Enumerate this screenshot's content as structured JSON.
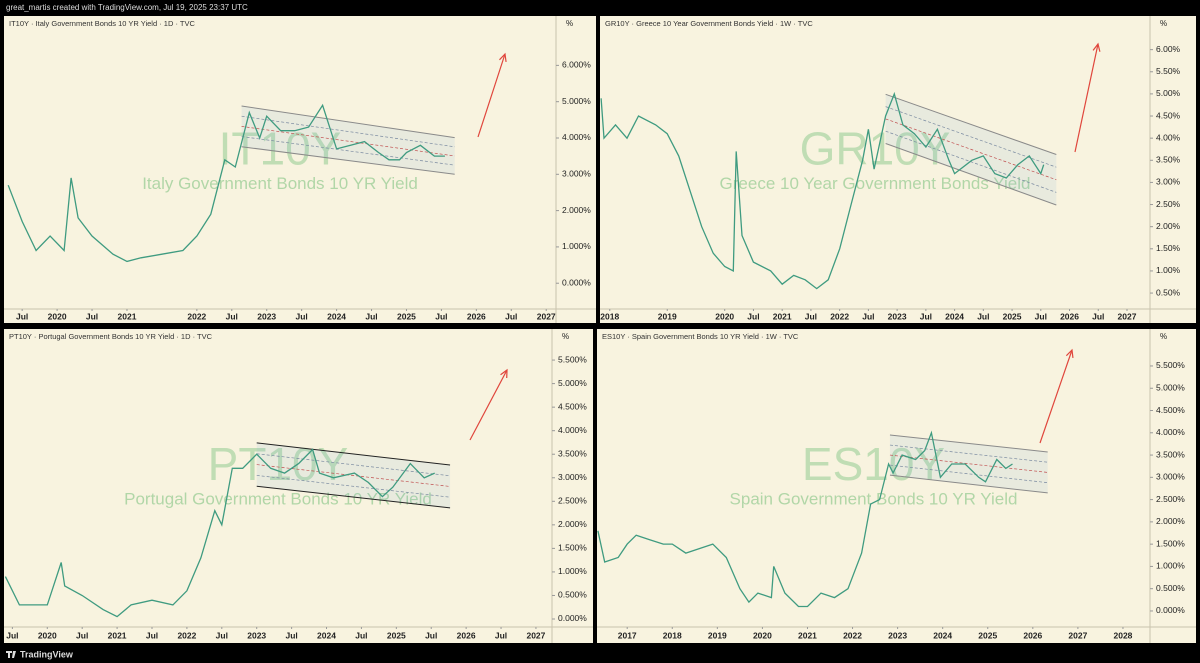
{
  "header": {
    "caption": "great_martis created with TradingView.com, Jul 19, 2025 23:37 UTC"
  },
  "footer": {
    "brand": "TradingView"
  },
  "chart_data": [
    {
      "type": "line",
      "title": "IT10Y · Italy Government Bonds 10 YR Yield · 1D · TVC",
      "symbol": "IT10Y",
      "description": "Italy Government Bonds 10 YR Yield",
      "y_axis_label": "%",
      "color": "#3f9b80",
      "x": [
        2019.3,
        2019.5,
        2019.7,
        2019.9,
        2020.1,
        2020.2,
        2020.3,
        2020.5,
        2020.8,
        2021.0,
        2021.2,
        2021.5,
        2021.8,
        2022.0,
        2022.2,
        2022.4,
        2022.55,
        2022.75,
        2022.9,
        2023.0,
        2023.2,
        2023.4,
        2023.6,
        2023.8,
        2023.9,
        2024.0,
        2024.2,
        2024.4,
        2024.6,
        2024.75,
        2024.9,
        2025.0,
        2025.2,
        2025.4,
        2025.55
      ],
      "values": [
        2.7,
        1.7,
        0.9,
        1.3,
        0.9,
        2.9,
        1.8,
        1.3,
        0.8,
        0.6,
        0.7,
        0.8,
        0.9,
        1.3,
        1.9,
        3.4,
        3.2,
        4.7,
        4.0,
        4.6,
        4.2,
        4.2,
        4.3,
        4.9,
        4.3,
        3.7,
        3.8,
        3.9,
        3.6,
        3.4,
        3.4,
        3.6,
        3.8,
        3.5,
        3.5
      ],
      "channel": {
        "x": [
          2022.64,
          2025.69
        ],
        "upper": [
          4.88,
          4.01
        ],
        "lower": [
          3.76,
          3.0
        ]
      },
      "xlim": [
        2019.24,
        2027.14
      ],
      "ylim": [
        -0.71,
        7.36
      ],
      "yticks": [
        {
          "value": 0,
          "label": "0.000%"
        },
        {
          "value": 1,
          "label": "1.000%"
        },
        {
          "value": 2,
          "label": "2.000%"
        },
        {
          "value": 3,
          "label": "3.000%"
        },
        {
          "value": 4,
          "label": "4.000%"
        },
        {
          "value": 5,
          "label": "5.000%"
        },
        {
          "value": 6,
          "label": "6.000%"
        }
      ],
      "xticks": [
        {
          "value": 2019.5,
          "label": "Jul"
        },
        {
          "value": 2020,
          "label": "2020"
        },
        {
          "value": 2020.5,
          "label": "Jul"
        },
        {
          "value": 2021,
          "label": "2021"
        },
        {
          "value": 2022,
          "label": "2022"
        },
        {
          "value": 2022.5,
          "label": "Jul"
        },
        {
          "value": 2023,
          "label": "2023"
        },
        {
          "value": 2023.5,
          "label": "Jul"
        },
        {
          "value": 2024,
          "label": "2024"
        },
        {
          "value": 2024.5,
          "label": "Jul"
        },
        {
          "value": 2025,
          "label": "2025"
        },
        {
          "value": 2025.5,
          "label": "Jul"
        },
        {
          "value": 2026,
          "label": "2026"
        },
        {
          "value": 2026.5,
          "label": "Jul"
        },
        {
          "value": 2027,
          "label": "2027"
        }
      ]
    },
    {
      "type": "line",
      "title": "GR10Y · Greece 10 Year Government Bonds Yield · 1W · TVC",
      "symbol": "GR10Y",
      "description": "Greece 10 Year Government Bonds Yield",
      "y_axis_label": "%",
      "color": "#3f9b80",
      "x": [
        2017.85,
        2017.9,
        2018.1,
        2018.3,
        2018.5,
        2018.8,
        2019.0,
        2019.2,
        2019.4,
        2019.6,
        2019.8,
        2020.0,
        2020.15,
        2020.2,
        2020.3,
        2020.5,
        2020.8,
        2021.0,
        2021.2,
        2021.4,
        2021.6,
        2021.8,
        2022.0,
        2022.2,
        2022.4,
        2022.5,
        2022.6,
        2022.8,
        2022.95,
        2023.1,
        2023.3,
        2023.5,
        2023.7,
        2023.9,
        2024.0,
        2024.3,
        2024.5,
        2024.7,
        2024.9,
        2025.1,
        2025.3,
        2025.5,
        2025.55
      ],
      "values": [
        4.9,
        4.0,
        4.3,
        4.0,
        4.5,
        4.3,
        4.1,
        3.6,
        2.8,
        2.0,
        1.4,
        1.1,
        1.0,
        3.7,
        1.8,
        1.2,
        1.0,
        0.7,
        0.9,
        0.8,
        0.6,
        0.8,
        1.5,
        2.5,
        3.5,
        4.2,
        3.3,
        4.5,
        5.0,
        4.3,
        4.1,
        3.8,
        4.2,
        3.5,
        3.2,
        3.5,
        3.6,
        3.2,
        3.1,
        3.4,
        3.6,
        3.2,
        3.4
      ],
      "channel": {
        "x": [
          2022.8,
          2025.77
        ],
        "upper": [
          4.99,
          3.63
        ],
        "lower": [
          3.88,
          2.49
        ]
      },
      "xlim": [
        2017.83,
        2027.4
      ],
      "ylim": [
        0.14,
        6.76
      ],
      "yticks": [
        {
          "value": 0.5,
          "label": "0.50%"
        },
        {
          "value": 1,
          "label": "1.00%"
        },
        {
          "value": 1.5,
          "label": "1.50%"
        },
        {
          "value": 2,
          "label": "2.00%"
        },
        {
          "value": 2.5,
          "label": "2.50%"
        },
        {
          "value": 3,
          "label": "3.00%"
        },
        {
          "value": 3.5,
          "label": "3.50%"
        },
        {
          "value": 4,
          "label": "4.00%"
        },
        {
          "value": 4.5,
          "label": "4.50%"
        },
        {
          "value": 5,
          "label": "5.00%"
        },
        {
          "value": 5.5,
          "label": "5.50%"
        },
        {
          "value": 6,
          "label": "6.00%"
        }
      ],
      "xticks": [
        {
          "value": 2018,
          "label": "2018"
        },
        {
          "value": 2019,
          "label": "2019"
        },
        {
          "value": 2020,
          "label": "2020"
        },
        {
          "value": 2020.5,
          "label": "Jul"
        },
        {
          "value": 2021,
          "label": "2021"
        },
        {
          "value": 2021.5,
          "label": "Jul"
        },
        {
          "value": 2022,
          "label": "2022"
        },
        {
          "value": 2022.5,
          "label": "Jul"
        },
        {
          "value": 2023,
          "label": "2023"
        },
        {
          "value": 2023.5,
          "label": "Jul"
        },
        {
          "value": 2024,
          "label": "2024"
        },
        {
          "value": 2024.5,
          "label": "Jul"
        },
        {
          "value": 2025,
          "label": "2025"
        },
        {
          "value": 2025.5,
          "label": "Jul"
        },
        {
          "value": 2026,
          "label": "2026"
        },
        {
          "value": 2026.5,
          "label": "Jul"
        },
        {
          "value": 2027,
          "label": "2027"
        }
      ]
    },
    {
      "type": "line",
      "title": "PT10Y · Portugal Government Bonds 10 YR Yield · 1D · TVC",
      "symbol": "PT10Y",
      "description": "Portugal Government Bonds 10 YR Yield",
      "y_axis_label": "%",
      "color": "#3f9b80",
      "x": [
        2019.4,
        2019.6,
        2019.8,
        2020.0,
        2020.2,
        2020.25,
        2020.5,
        2020.8,
        2021.0,
        2021.2,
        2021.5,
        2021.8,
        2022.0,
        2022.2,
        2022.4,
        2022.5,
        2022.65,
        2022.8,
        2023.0,
        2023.2,
        2023.4,
        2023.6,
        2023.8,
        2023.9,
        2024.1,
        2024.4,
        2024.6,
        2024.8,
        2024.95,
        2025.2,
        2025.4,
        2025.55
      ],
      "values": [
        0.9,
        0.3,
        0.3,
        0.3,
        1.2,
        0.7,
        0.5,
        0.2,
        0.05,
        0.3,
        0.4,
        0.3,
        0.6,
        1.3,
        2.3,
        2.0,
        3.2,
        3.2,
        3.5,
        3.2,
        3.1,
        3.3,
        3.6,
        3.1,
        3.0,
        3.1,
        2.9,
        2.6,
        2.8,
        3.3,
        3.0,
        3.1
      ],
      "channel": {
        "x": [
          2023.0,
          2025.77
        ],
        "upper": [
          3.74,
          3.27
        ],
        "lower": [
          2.82,
          2.36
        ]
      },
      "xlim": [
        2019.38,
        2027.23
      ],
      "ylim": [
        -0.17,
        6.16
      ],
      "yticks": [
        {
          "value": 0,
          "label": "0.000%"
        },
        {
          "value": 0.5,
          "label": "0.500%"
        },
        {
          "value": 1,
          "label": "1.000%"
        },
        {
          "value": 1.5,
          "label": "1.500%"
        },
        {
          "value": 2,
          "label": "2.000%"
        },
        {
          "value": 2.5,
          "label": "2.500%"
        },
        {
          "value": 3,
          "label": "3.000%"
        },
        {
          "value": 3.5,
          "label": "3.500%"
        },
        {
          "value": 4,
          "label": "4.000%"
        },
        {
          "value": 4.5,
          "label": "4.500%"
        },
        {
          "value": 5,
          "label": "5.000%"
        },
        {
          "value": 5.5,
          "label": "5.500%"
        }
      ],
      "xticks": [
        {
          "value": 2019.5,
          "label": "Jul"
        },
        {
          "value": 2020,
          "label": "2020"
        },
        {
          "value": 2020.5,
          "label": "Jul"
        },
        {
          "value": 2021,
          "label": "2021"
        },
        {
          "value": 2021.5,
          "label": "Jul"
        },
        {
          "value": 2022,
          "label": "2022"
        },
        {
          "value": 2022.5,
          "label": "Jul"
        },
        {
          "value": 2023,
          "label": "2023"
        },
        {
          "value": 2023.5,
          "label": "Jul"
        },
        {
          "value": 2024,
          "label": "2024"
        },
        {
          "value": 2024.5,
          "label": "Jul"
        },
        {
          "value": 2025,
          "label": "2025"
        },
        {
          "value": 2025.5,
          "label": "Jul"
        },
        {
          "value": 2026,
          "label": "2026"
        },
        {
          "value": 2026.5,
          "label": "Jul"
        },
        {
          "value": 2027,
          "label": "2027"
        }
      ]
    },
    {
      "type": "line",
      "title": "ES10Y · Spain Government Bonds 10 YR Yield · 1W · TVC",
      "symbol": "ES10Y",
      "description": "Spain Government Bonds 10 YR Yield",
      "y_axis_label": "%",
      "color": "#3f9b80",
      "x": [
        2016.35,
        2016.5,
        2016.8,
        2017.0,
        2017.2,
        2017.5,
        2017.8,
        2018.0,
        2018.3,
        2018.6,
        2018.9,
        2019.2,
        2019.5,
        2019.7,
        2019.9,
        2020.2,
        2020.25,
        2020.5,
        2020.8,
        2021.0,
        2021.3,
        2021.6,
        2021.9,
        2022.2,
        2022.4,
        2022.6,
        2022.8,
        2022.9,
        2023.1,
        2023.4,
        2023.6,
        2023.75,
        2023.95,
        2024.2,
        2024.5,
        2024.8,
        2024.95,
        2025.2,
        2025.4,
        2025.55
      ],
      "values": [
        1.8,
        1.1,
        1.2,
        1.5,
        1.7,
        1.6,
        1.5,
        1.5,
        1.3,
        1.4,
        1.5,
        1.2,
        0.5,
        0.2,
        0.4,
        0.3,
        1.0,
        0.4,
        0.1,
        0.1,
        0.4,
        0.3,
        0.5,
        1.3,
        2.4,
        2.5,
        3.3,
        3.1,
        3.5,
        3.4,
        3.6,
        4.0,
        3.0,
        3.3,
        3.3,
        3.0,
        2.9,
        3.4,
        3.2,
        3.3
      ],
      "channel": {
        "x": [
          2022.83,
          2026.33
        ],
        "upper": [
          3.95,
          3.57
        ],
        "lower": [
          3.05,
          2.65
        ]
      },
      "xlim": [
        2016.33,
        2028.6
      ],
      "ylim": [
        -0.36,
        6.33
      ],
      "yticks": [
        {
          "value": 0,
          "label": "0.000%"
        },
        {
          "value": 0.5,
          "label": "0.500%"
        },
        {
          "value": 1,
          "label": "1.000%"
        },
        {
          "value": 1.5,
          "label": "1.500%"
        },
        {
          "value": 2,
          "label": "2.000%"
        },
        {
          "value": 2.5,
          "label": "2.500%"
        },
        {
          "value": 3,
          "label": "3.000%"
        },
        {
          "value": 3.5,
          "label": "3.500%"
        },
        {
          "value": 4,
          "label": "4.000%"
        },
        {
          "value": 4.5,
          "label": "4.500%"
        },
        {
          "value": 5,
          "label": "5.000%"
        },
        {
          "value": 5.5,
          "label": "5.500%"
        }
      ],
      "xticks": [
        2017,
        2018,
        2019,
        2020,
        2021,
        2022,
        2023,
        2024,
        2025,
        2026,
        2027,
        2028
      ]
    }
  ]
}
